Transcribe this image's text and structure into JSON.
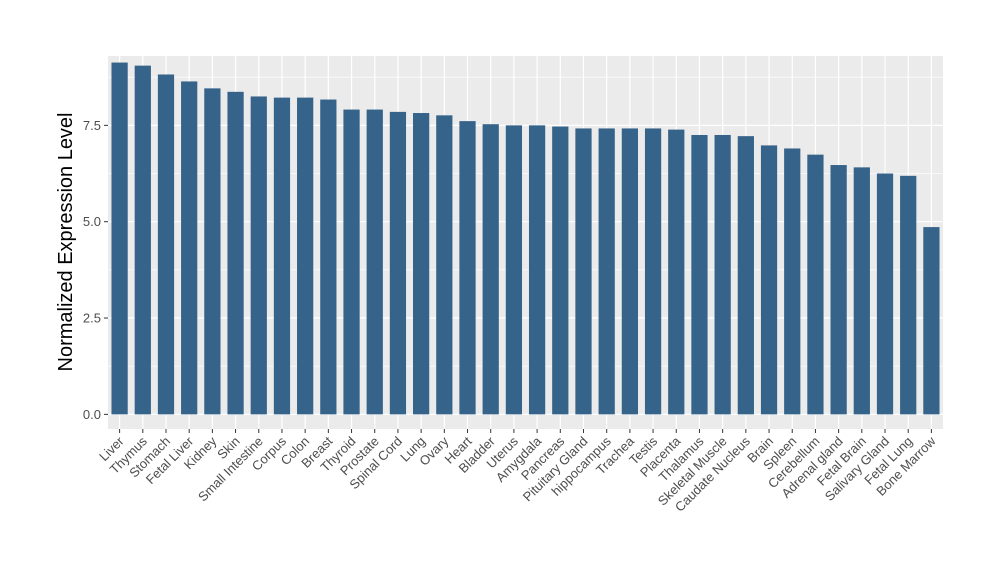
{
  "chart_data": {
    "type": "bar",
    "ylabel": "Normalized Expression Level",
    "xlabel": "",
    "ylim": [
      -0.38,
      9.3
    ],
    "yticks": [
      0.0,
      2.5,
      5.0,
      7.5
    ],
    "ytick_labels": [
      "0.0",
      "2.5",
      "5.0",
      "7.5"
    ],
    "grid": true,
    "bar_color": "#35638a",
    "panel_color": "#ebebeb",
    "categories": [
      "Liver",
      "Thymus",
      "Stomach",
      "Fetal Liver",
      "Kidney",
      "Skin",
      "Small Intestine",
      "Corpus",
      "Colon",
      "Breast",
      "Thyroid",
      "Prostate",
      "Spinal Cord",
      "Lung",
      "Ovary",
      "Heart",
      "Bladder",
      "Uterus",
      "Amygdala",
      "Pancreas",
      "Pituitary Gland",
      "hippocampus",
      "Trachea",
      "Testis",
      "Placenta",
      "Thalamus",
      "Skeletal Muscle",
      "Caudate Nucleus",
      "Brain",
      "Spleen",
      "Cerebellum",
      "Adrenal gland",
      "Fetal Brain",
      "Salivary Gland",
      "Fetal Lung",
      "Bone Marrow"
    ],
    "values": [
      9.13,
      9.05,
      8.82,
      8.64,
      8.46,
      8.37,
      8.25,
      8.22,
      8.22,
      8.17,
      7.91,
      7.91,
      7.85,
      7.82,
      7.76,
      7.61,
      7.53,
      7.5,
      7.5,
      7.47,
      7.42,
      7.42,
      7.42,
      7.42,
      7.39,
      7.25,
      7.25,
      7.22,
      6.98,
      6.9,
      6.74,
      6.47,
      6.41,
      6.25,
      6.19,
      4.86
    ]
  }
}
